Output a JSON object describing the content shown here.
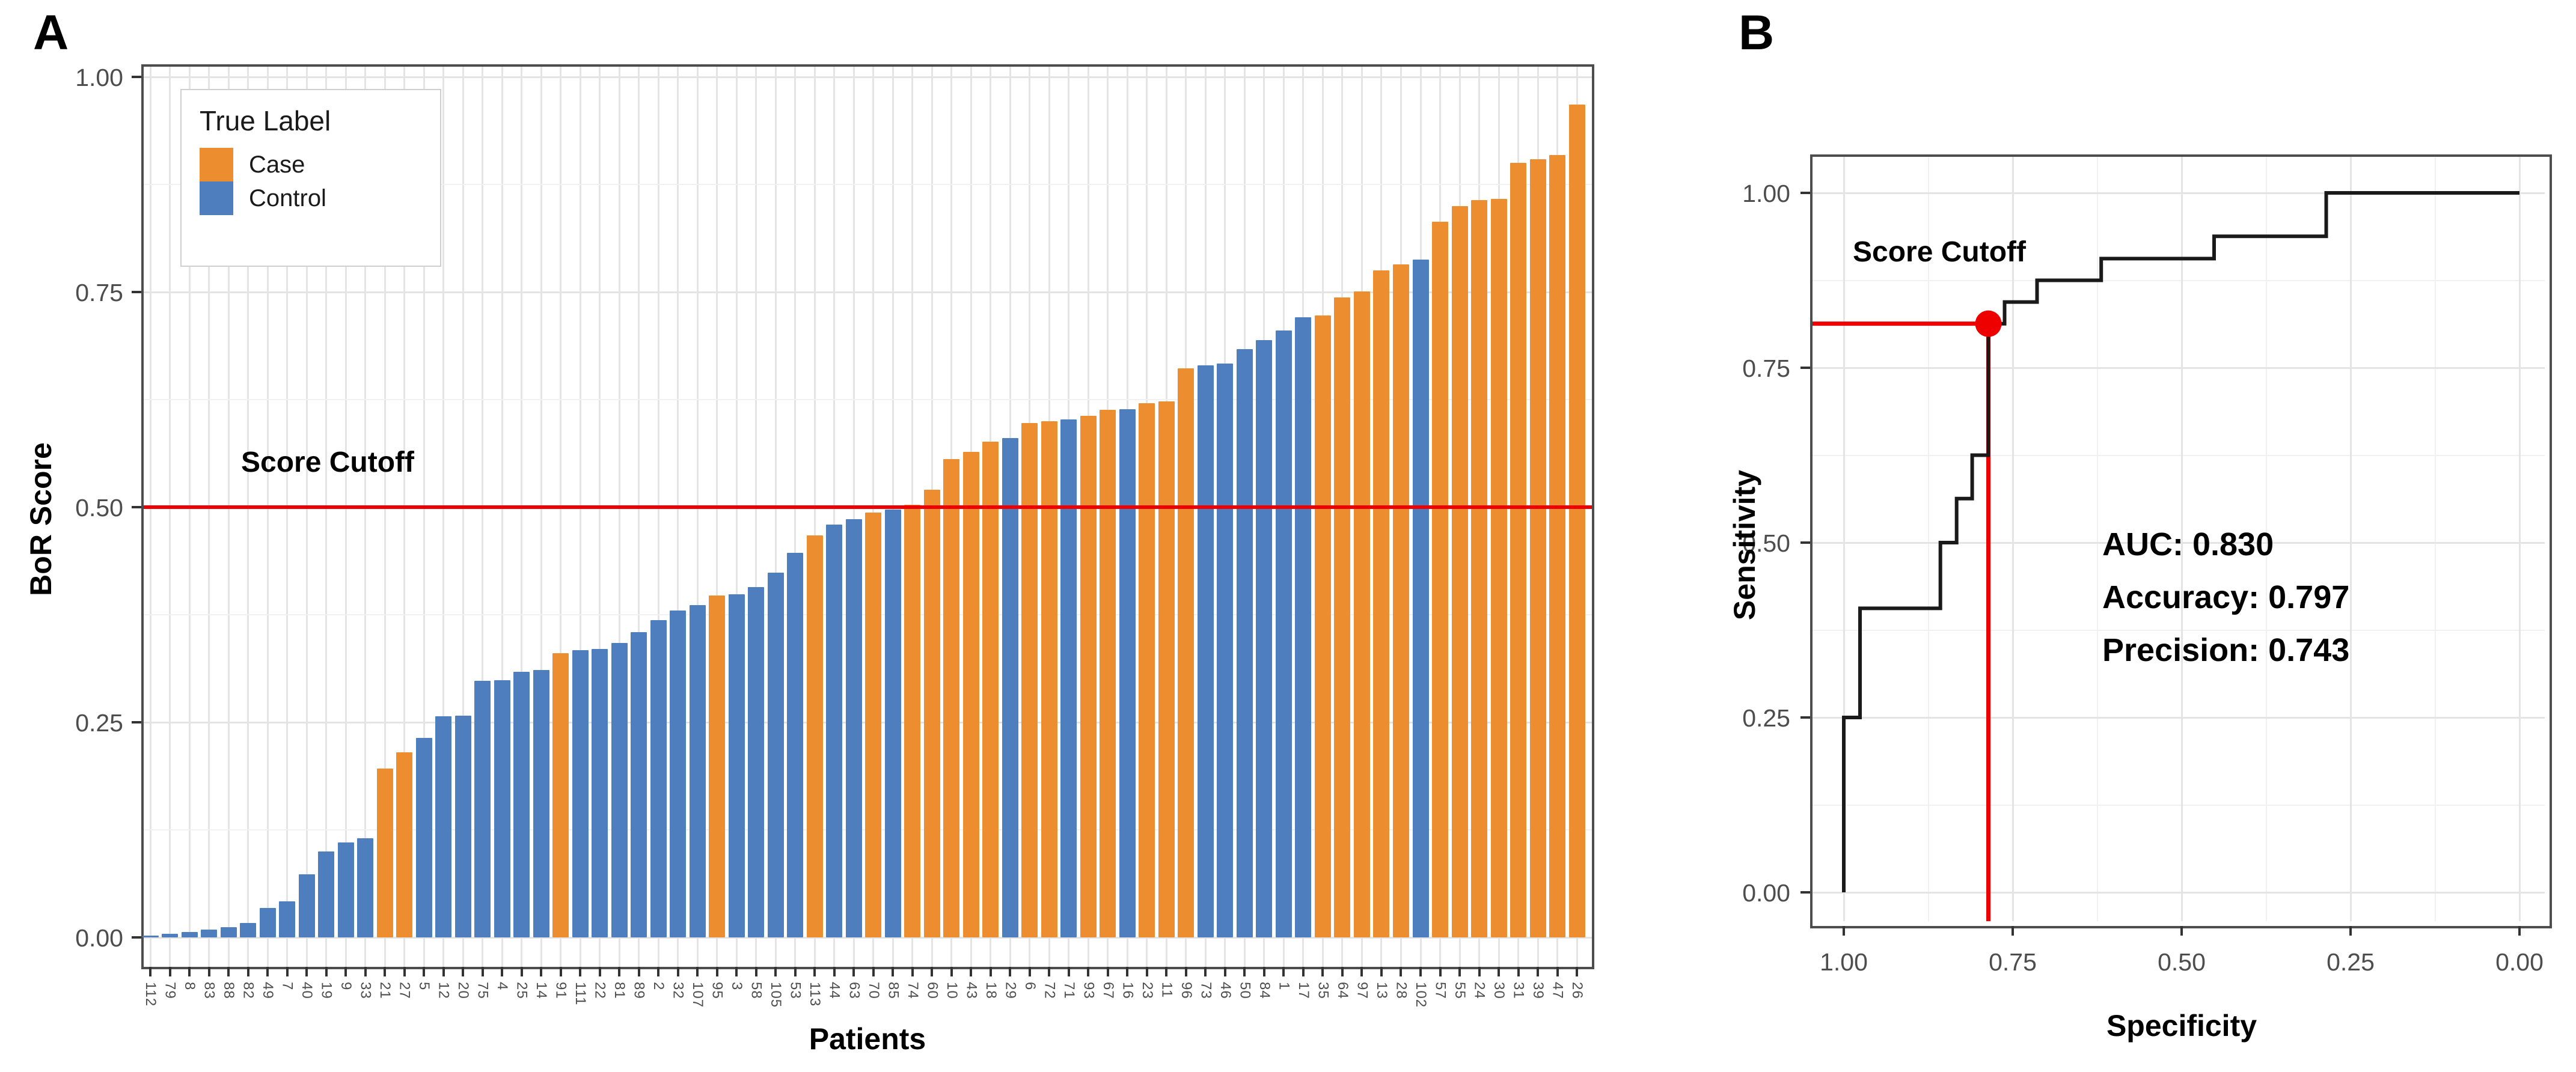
{
  "figure": {
    "panel_a_letter": "A",
    "panel_b_letter": "B"
  },
  "panel_a": {
    "y_axis_title": "BoR Score",
    "x_axis_title": "Patients",
    "y_tick_labels": [
      "1.00",
      "0.75",
      "0.50",
      "0.25",
      "0.00"
    ],
    "cutoff_label": "Score Cutoff",
    "legend_title": "True Label",
    "legend_case_label": "Case",
    "legend_control_label": "Control"
  },
  "panel_b": {
    "y_axis_title": "Sensitivity",
    "x_axis_title": "Specificity",
    "y_tick_labels": [
      "1.00",
      "0.75",
      "0.50",
      "0.25",
      "0.00"
    ],
    "x_tick_labels": [
      "1.00",
      "0.75",
      "0.50",
      "0.25",
      "0.00"
    ],
    "cutoff_label": "Score Cutoff",
    "stats_lines": [
      "AUC: 0.830",
      "Accuracy: 0.797",
      "Precision: 0.743"
    ]
  },
  "colors": {
    "case_orange": "#ec8e2f",
    "control_blue": "#4e7ebd",
    "cutoff_red": "#ee0000",
    "curve_black": "#1a1a1a",
    "panel_border": "#4d4d4d",
    "tick_text": "#4d4d4d"
  },
  "chart_data": [
    {
      "type": "bar",
      "title": "",
      "xlabel": "Patients",
      "ylabel": "BoR Score",
      "ylim": [
        0,
        1
      ],
      "yticks": [
        0.0,
        0.25,
        0.5,
        0.75,
        1.0
      ],
      "grid": true,
      "legend_position": "top-left-inside",
      "legend": {
        "title": "True Label",
        "entries": [
          {
            "label": "Case",
            "color": "#ec8e2f"
          },
          {
            "label": "Control",
            "color": "#4e7ebd"
          }
        ]
      },
      "cutoff": {
        "label": "Score Cutoff",
        "value": 0.5
      },
      "bars": [
        {
          "patient": "112",
          "score": 0.002,
          "label": "Control"
        },
        {
          "patient": "79",
          "score": 0.004,
          "label": "Control"
        },
        {
          "patient": "8",
          "score": 0.006,
          "label": "Control"
        },
        {
          "patient": "83",
          "score": 0.009,
          "label": "Control"
        },
        {
          "patient": "88",
          "score": 0.012,
          "label": "Control"
        },
        {
          "patient": "82",
          "score": 0.017,
          "label": "Control"
        },
        {
          "patient": "49",
          "score": 0.034,
          "label": "Control"
        },
        {
          "patient": "7",
          "score": 0.042,
          "label": "Control"
        },
        {
          "patient": "40",
          "score": 0.073,
          "label": "Control"
        },
        {
          "patient": "19",
          "score": 0.1,
          "label": "Control"
        },
        {
          "patient": "9",
          "score": 0.11,
          "label": "Control"
        },
        {
          "patient": "33",
          "score": 0.115,
          "label": "Control"
        },
        {
          "patient": "21",
          "score": 0.196,
          "label": "Case"
        },
        {
          "patient": "27",
          "score": 0.215,
          "label": "Case"
        },
        {
          "patient": "5",
          "score": 0.232,
          "label": "Control"
        },
        {
          "patient": "12",
          "score": 0.257,
          "label": "Control"
        },
        {
          "patient": "20",
          "score": 0.258,
          "label": "Control"
        },
        {
          "patient": "75",
          "score": 0.298,
          "label": "Control"
        },
        {
          "patient": "4",
          "score": 0.299,
          "label": "Control"
        },
        {
          "patient": "25",
          "score": 0.309,
          "label": "Control"
        },
        {
          "patient": "14",
          "score": 0.311,
          "label": "Control"
        },
        {
          "patient": "91",
          "score": 0.33,
          "label": "Case"
        },
        {
          "patient": "111",
          "score": 0.334,
          "label": "Control"
        },
        {
          "patient": "22",
          "score": 0.335,
          "label": "Control"
        },
        {
          "patient": "81",
          "score": 0.342,
          "label": "Control"
        },
        {
          "patient": "89",
          "score": 0.355,
          "label": "Control"
        },
        {
          "patient": "2",
          "score": 0.369,
          "label": "Control"
        },
        {
          "patient": "32",
          "score": 0.38,
          "label": "Control"
        },
        {
          "patient": "107",
          "score": 0.386,
          "label": "Control"
        },
        {
          "patient": "95",
          "score": 0.397,
          "label": "Case"
        },
        {
          "patient": "3",
          "score": 0.399,
          "label": "Control"
        },
        {
          "patient": "58",
          "score": 0.407,
          "label": "Control"
        },
        {
          "patient": "105",
          "score": 0.424,
          "label": "Control"
        },
        {
          "patient": "53",
          "score": 0.447,
          "label": "Control"
        },
        {
          "patient": "113",
          "score": 0.467,
          "label": "Case"
        },
        {
          "patient": "44",
          "score": 0.48,
          "label": "Control"
        },
        {
          "patient": "63",
          "score": 0.486,
          "label": "Control"
        },
        {
          "patient": "70",
          "score": 0.494,
          "label": "Case"
        },
        {
          "patient": "85",
          "score": 0.497,
          "label": "Control"
        },
        {
          "patient": "74",
          "score": 0.503,
          "label": "Case"
        },
        {
          "patient": "60",
          "score": 0.52,
          "label": "Case"
        },
        {
          "patient": "10",
          "score": 0.556,
          "label": "Case"
        },
        {
          "patient": "43",
          "score": 0.564,
          "label": "Case"
        },
        {
          "patient": "18",
          "score": 0.576,
          "label": "Case"
        },
        {
          "patient": "29",
          "score": 0.58,
          "label": "Control"
        },
        {
          "patient": "6",
          "score": 0.598,
          "label": "Case"
        },
        {
          "patient": "72",
          "score": 0.6,
          "label": "Case"
        },
        {
          "patient": "71",
          "score": 0.602,
          "label": "Control"
        },
        {
          "patient": "93",
          "score": 0.606,
          "label": "Case"
        },
        {
          "patient": "67",
          "score": 0.613,
          "label": "Case"
        },
        {
          "patient": "16",
          "score": 0.614,
          "label": "Control"
        },
        {
          "patient": "23",
          "score": 0.621,
          "label": "Case"
        },
        {
          "patient": "11",
          "score": 0.623,
          "label": "Case"
        },
        {
          "patient": "96",
          "score": 0.661,
          "label": "Case"
        },
        {
          "patient": "73",
          "score": 0.665,
          "label": "Control"
        },
        {
          "patient": "46",
          "score": 0.667,
          "label": "Control"
        },
        {
          "patient": "50",
          "score": 0.684,
          "label": "Control"
        },
        {
          "patient": "84",
          "score": 0.694,
          "label": "Control"
        },
        {
          "patient": "1",
          "score": 0.705,
          "label": "Control"
        },
        {
          "patient": "17",
          "score": 0.721,
          "label": "Control"
        },
        {
          "patient": "35",
          "score": 0.723,
          "label": "Case"
        },
        {
          "patient": "64",
          "score": 0.744,
          "label": "Case"
        },
        {
          "patient": "97",
          "score": 0.751,
          "label": "Case"
        },
        {
          "patient": "13",
          "score": 0.775,
          "label": "Case"
        },
        {
          "patient": "28",
          "score": 0.782,
          "label": "Case"
        },
        {
          "patient": "102",
          "score": 0.788,
          "label": "Control"
        },
        {
          "patient": "57",
          "score": 0.832,
          "label": "Case"
        },
        {
          "patient": "55",
          "score": 0.85,
          "label": "Case"
        },
        {
          "patient": "24",
          "score": 0.857,
          "label": "Case"
        },
        {
          "patient": "30",
          "score": 0.858,
          "label": "Case"
        },
        {
          "patient": "31",
          "score": 0.9,
          "label": "Case"
        },
        {
          "patient": "39",
          "score": 0.904,
          "label": "Case"
        },
        {
          "patient": "47",
          "score": 0.909,
          "label": "Case"
        },
        {
          "patient": "26",
          "score": 0.968,
          "label": "Case"
        }
      ]
    },
    {
      "type": "line",
      "subtype": "roc-step-curve",
      "xlabel": "Specificity",
      "ylabel": "Sensitivity",
      "x_reversed": true,
      "xlim": [
        1.0,
        0.0
      ],
      "ylim": [
        0.0,
        1.0
      ],
      "xticks": [
        1.0,
        0.75,
        0.5,
        0.25,
        0.0
      ],
      "yticks": [
        0.0,
        0.25,
        0.5,
        0.75,
        1.0
      ],
      "grid": true,
      "annotations": [
        "AUC: 0.830",
        "Accuracy: 0.797",
        "Precision: 0.743"
      ],
      "cutoff_point": {
        "label": "Score Cutoff",
        "specificity": 0.786,
        "sensitivity": 0.813
      },
      "roc_points": [
        [
          1.0,
          0.0
        ],
        [
          1.0,
          0.25
        ],
        [
          0.976,
          0.25
        ],
        [
          0.976,
          0.406
        ],
        [
          0.857,
          0.406
        ],
        [
          0.857,
          0.5
        ],
        [
          0.833,
          0.5
        ],
        [
          0.833,
          0.563
        ],
        [
          0.81,
          0.563
        ],
        [
          0.81,
          0.625
        ],
        [
          0.786,
          0.625
        ],
        [
          0.786,
          0.813
        ],
        [
          0.762,
          0.813
        ],
        [
          0.762,
          0.844
        ],
        [
          0.714,
          0.844
        ],
        [
          0.714,
          0.875
        ],
        [
          0.619,
          0.875
        ],
        [
          0.619,
          0.906
        ],
        [
          0.452,
          0.906
        ],
        [
          0.452,
          0.938
        ],
        [
          0.286,
          0.938
        ],
        [
          0.286,
          1.0
        ],
        [
          0.0,
          1.0
        ]
      ]
    }
  ]
}
